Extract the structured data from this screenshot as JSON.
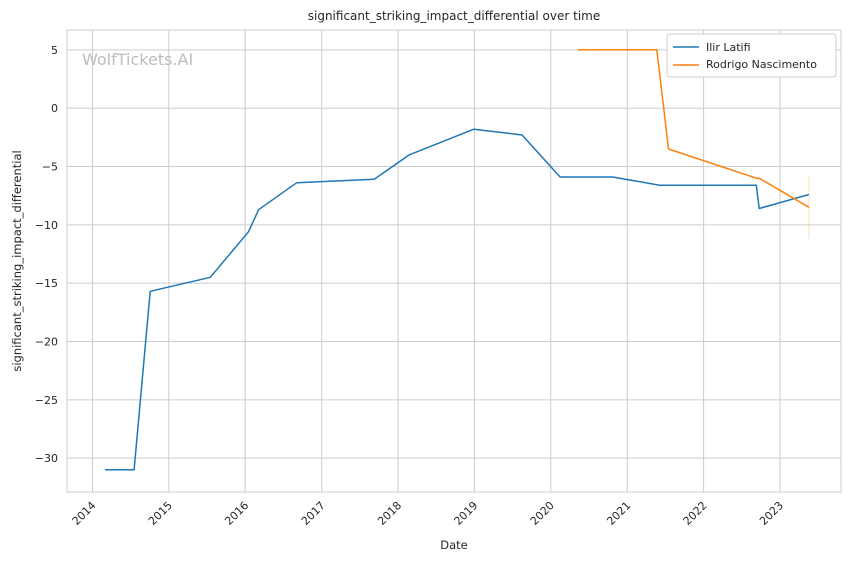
{
  "chart_data": {
    "type": "line",
    "title": "significant_striking_impact_differential over time",
    "xlabel": "Date",
    "ylabel": "significant_striking_impact_differential",
    "watermark": "WolfTickets.AI",
    "xlim": [
      "2013-09-01",
      "2023-10-20"
    ],
    "ylim": [
      -32.9,
      6.7
    ],
    "x_ticks": [
      "2014",
      "2015",
      "2016",
      "2017",
      "2018",
      "2019",
      "2020",
      "2021",
      "2022",
      "2023"
    ],
    "y_ticks": [
      5,
      0,
      -5,
      -10,
      -15,
      -20,
      -25,
      -30
    ],
    "y_tick_labels": [
      "5",
      "0",
      "−5",
      "−10",
      "−15",
      "−20",
      "−25",
      "−30"
    ],
    "grid": true,
    "legend_position": "top-right",
    "series": [
      {
        "name": "Ilir Latifi",
        "color": "#1f77b4",
        "points": [
          [
            "2014-03-01",
            -31.0
          ],
          [
            "2014-07-19",
            -31.0
          ],
          [
            "2014-10-04",
            -15.7
          ],
          [
            "2015-07-18",
            -14.5
          ],
          [
            "2016-01-17",
            -10.6
          ],
          [
            "2016-03-05",
            -8.7
          ],
          [
            "2016-09-03",
            -6.4
          ],
          [
            "2017-09-09",
            -6.1
          ],
          [
            "2018-02-24",
            -4.0
          ],
          [
            "2018-12-29",
            -1.8
          ],
          [
            "2019-08-17",
            -2.3
          ],
          [
            "2020-02-15",
            -5.9
          ],
          [
            "2020-10-24",
            -5.9
          ],
          [
            "2021-06-05",
            -6.6
          ],
          [
            "2022-09-10",
            -6.6
          ],
          [
            "2022-09-24",
            -8.6
          ],
          [
            "2023-05-20",
            -7.4
          ]
        ]
      },
      {
        "name": "Rodrigo Nascimento",
        "color": "#ff7f0e",
        "points": [
          [
            "2020-05-09",
            5.0
          ],
          [
            "2021-05-22",
            5.0
          ],
          [
            "2021-07-17",
            -3.5
          ],
          [
            "2022-09-10",
            -6.0
          ],
          [
            "2022-09-24",
            -6.0
          ],
          [
            "2023-05-20",
            -8.5
          ]
        ],
        "error_bar": {
          "date": "2023-05-20",
          "low": -11.2,
          "high": -5.8
        }
      }
    ]
  }
}
